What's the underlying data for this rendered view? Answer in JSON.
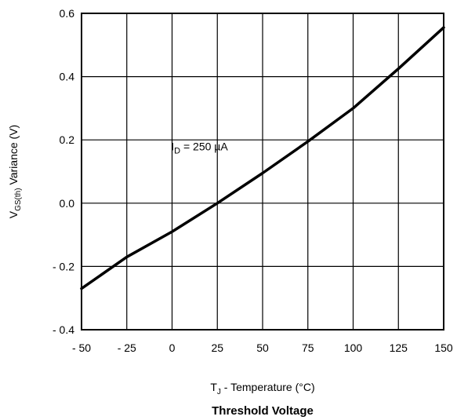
{
  "chart_data": {
    "type": "line",
    "title": "Threshold Voltage",
    "xlabel": {
      "main": "T",
      "sub": "J",
      "rest": " - Temperature (°C)"
    },
    "ylabel": {
      "main": "V",
      "sub": "GS(th)",
      "rest": "  Variance (V)"
    },
    "xlim": [
      -50,
      150
    ],
    "ylim": [
      -0.4,
      0.6
    ],
    "grid": true,
    "x_ticks": [
      -50,
      -25,
      0,
      25,
      50,
      75,
      100,
      125,
      150
    ],
    "x_tick_labels": [
      "- 50",
      "- 25",
      "0",
      "25",
      "50",
      "75",
      "100",
      "125",
      "150"
    ],
    "y_ticks": [
      0.6,
      0.4,
      0.2,
      0.0,
      -0.2,
      -0.4
    ],
    "y_tick_labels": [
      "0.6",
      "0.4",
      "0.2",
      "0.0",
      "- 0.2",
      "- 0.4"
    ],
    "annotation": {
      "main": "I",
      "sub": "D",
      "rest": " = 250 µA",
      "x": 25,
      "y": 0.18
    },
    "series": [
      {
        "x": [
          -50,
          -25,
          0,
          25,
          50,
          75,
          100,
          125,
          150
        ],
        "y": [
          -0.27,
          -0.17,
          -0.09,
          0.0,
          0.095,
          0.195,
          0.3,
          0.425,
          0.555
        ]
      }
    ]
  }
}
